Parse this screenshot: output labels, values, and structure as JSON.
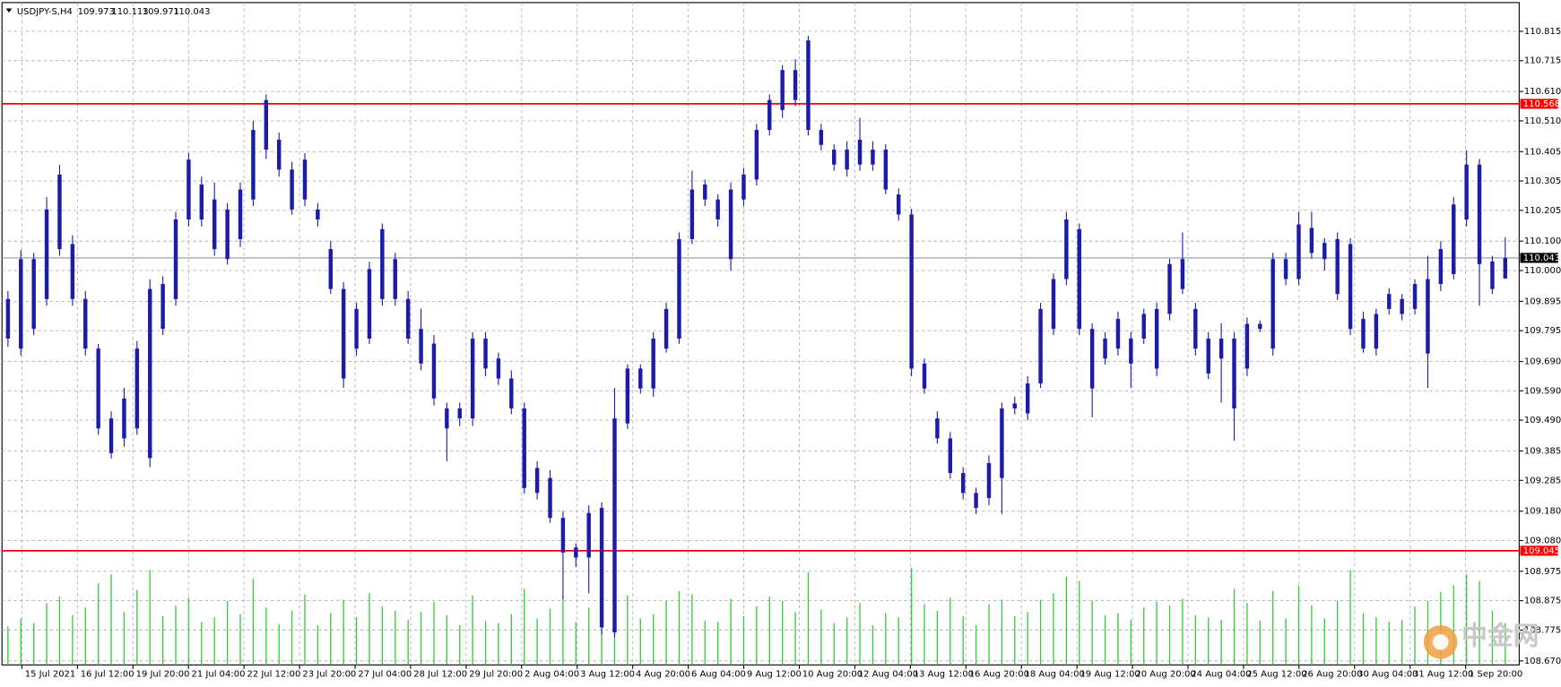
{
  "chart_data": {
    "type": "candlestick",
    "symbol": "USDJPY-S,H4",
    "watermark": "中金网",
    "color": "#1c1ca8",
    "volume_color": "#3cc83c",
    "grid": true,
    "ylim": [
      108.656,
      110.913
    ],
    "yticks": [
      110.815,
      110.715,
      {
        "value": 110.61,
        "label": "110.610"
      },
      {
        "value": 110.51,
        "label": "110.510"
      },
      110.405,
      110.305,
      110.205,
      {
        "value": 110.1,
        "label": "110.100"
      },
      {
        "value": 110,
        "label": "110.000"
      },
      109.895,
      109.795,
      {
        "value": 109.69,
        "label": "109.690"
      },
      {
        "value": 109.59,
        "label": "109.590"
      },
      {
        "value": 109.49,
        "label": "109.490"
      },
      109.385,
      109.285,
      {
        "value": 109.18,
        "label": "109.180"
      },
      {
        "value": 109.08,
        "label": "109.080"
      },
      108.975,
      108.875,
      108.775,
      {
        "value": 108.67,
        "label": "108.670"
      }
    ],
    "levels": [
      {
        "value": 110.568,
        "color": "#ff0000"
      },
      {
        "value": 109.045,
        "color": "#ff0000"
      }
    ],
    "current_price": {
      "value": 110.043,
      "color": "#8a96a8"
    },
    "x_labels": [
      "15 Jul 2021",
      "16 Jul 12:00",
      "19 Jul 20:00",
      "21 Jul 04:00",
      "22 Jul 12:00",
      "23 Jul 20:00",
      "27 Jul 04:00",
      "28 Jul 12:00",
      "29 Jul 20:00",
      "2 Aug 04:00",
      "3 Aug 12:00",
      "4 Aug 20:00",
      "6 Aug 04:00",
      "9 Aug 12:00",
      "10 Aug 20:00",
      "12 Aug 04:00",
      "13 Aug 12:00",
      "16 Aug 20:00",
      "18 Aug 04:00",
      "19 Aug 12:00",
      "20 Aug 20:00",
      "24 Aug 04:00",
      "25 Aug 12:00",
      "26 Aug 20:00",
      "30 Aug 04:00",
      "31 Aug 12:00",
      "1 Sep 20:00"
    ],
    "open": [
      109.903,
      109.734,
      110.039,
      109.903,
      110.073,
      110.09,
      109.903,
      109.734,
      109.496,
      109.428,
      109.462,
      109.361,
      109.954,
      109.903,
      110.174,
      110.293,
      110.242,
      110.208,
      110.107,
      110.242,
      110.412,
      110.446,
      110.344,
      110.242,
      110.208,
      110.073,
      109.937,
      109.734,
      109.768,
      109.903,
      110.039,
      109.903,
      109.801,
      109.751,
      109.53,
      109.53,
      109.496,
      109.768,
      109.7,
      109.632,
      109.53,
      109.242,
      109.293,
      109.157,
      109.056,
      109.022,
      109.191,
      108.767,
      109.479,
      109.666,
      109.598,
      109.734,
      109.768,
      110.107,
      110.293,
      110.242,
      110.039,
      110.242,
      110.31,
      110.479,
      110.547,
      110.683,
      110.784,
      110.479,
      110.412,
      110.344,
      110.446,
      110.361,
      110.412,
      110.259,
      110.191,
      109.683,
      109.496,
      109.428,
      109.31,
      109.242,
      109.225,
      109.293,
      109.547,
      109.513,
      109.615,
      109.801,
      109.971,
      110.141,
      109.801,
      109.7,
      109.734,
      109.768,
      109.768,
      109.869,
      109.852,
      110.039,
      109.869,
      109.649,
      109.768,
      109.768,
      109.666,
      109.818,
      109.734,
      110.039,
      109.971,
      110.145,
      110.094,
      110.107,
      110.09,
      109.835,
      109.734,
      109.869,
      109.903,
      109.869,
      109.971,
      109.954,
      109.988,
      110.174,
      110.361,
      110.031,
      109.973
    ],
    "high": [
      109.93,
      110.07,
      110.06,
      110.25,
      110.36,
      110.12,
      109.93,
      109.75,
      109.52,
      109.6,
      109.76,
      109.97,
      109.98,
      110.2,
      110.4,
      110.32,
      110.3,
      110.23,
      110.3,
      110.51,
      110.6,
      110.47,
      110.37,
      110.4,
      110.23,
      110.1,
      109.96,
      109.89,
      110.03,
      110.16,
      110.06,
      109.93,
      109.87,
      109.78,
      109.55,
      109.55,
      109.79,
      109.79,
      109.72,
      109.66,
      109.55,
      109.35,
      109.32,
      109.18,
      109.07,
      109.2,
      109.21,
      109.6,
      109.68,
      109.68,
      109.79,
      109.89,
      110.13,
      110.34,
      110.31,
      110.26,
      110.3,
      110.35,
      110.5,
      110.6,
      110.7,
      110.72,
      110.8,
      110.5,
      110.43,
      110.44,
      110.52,
      110.44,
      110.43,
      110.28,
      110.21,
      109.7,
      109.52,
      109.45,
      109.33,
      109.26,
      109.37,
      109.55,
      109.57,
      109.64,
      109.89,
      109.99,
      110.2,
      110.16,
      109.82,
      109.79,
      109.86,
      109.79,
      109.87,
      109.89,
      110.04,
      110.13,
      109.89,
      109.79,
      109.82,
      109.79,
      109.84,
      109.83,
      110.06,
      110.06,
      110.2,
      110.2,
      110.11,
      110.13,
      110.11,
      109.86,
      109.87,
      109.94,
      109.92,
      109.97,
      110.05,
      110.1,
      110.25,
      110.41,
      110.38,
      110.05,
      110.113
    ],
    "low": [
      109.74,
      109.71,
      109.78,
      109.88,
      110.05,
      109.88,
      109.71,
      109.44,
      109.36,
      109.4,
      109.44,
      109.33,
      109.78,
      109.88,
      110.15,
      110.15,
      110.05,
      110.02,
      110.08,
      110.22,
      110.38,
      110.32,
      110.19,
      110.22,
      110.15,
      109.92,
      109.6,
      109.71,
      109.75,
      109.88,
      109.88,
      109.75,
      109.66,
      109.54,
      109.35,
      109.47,
      109.47,
      109.64,
      109.61,
      109.51,
      109.24,
      109.22,
      109.14,
      108.88,
      108.99,
      108.9,
      108.76,
      108.75,
      109.46,
      109.58,
      109.57,
      109.72,
      109.75,
      110.09,
      110.22,
      110.15,
      110.0,
      110.22,
      110.29,
      110.46,
      110.52,
      110.56,
      110.46,
      110.41,
      110.34,
      110.32,
      110.34,
      110.34,
      110.26,
      110.17,
      109.64,
      109.58,
      109.41,
      109.29,
      109.22,
      109.17,
      109.2,
      109.17,
      109.51,
      109.49,
      109.6,
      109.78,
      109.95,
      109.78,
      109.5,
      109.68,
      109.71,
      109.6,
      109.75,
      109.64,
      109.83,
      109.92,
      109.71,
      109.63,
      109.55,
      109.42,
      109.64,
      109.79,
      109.71,
      109.95,
      109.95,
      110.04,
      110.0,
      109.9,
      109.78,
      109.72,
      109.71,
      109.85,
      109.83,
      109.85,
      109.6,
      109.93,
      109.97,
      110.15,
      109.88,
      109.92,
      109.971
    ],
    "close": [
      109.768,
      110.039,
      109.801,
      110.208,
      110.327,
      109.903,
      109.734,
      109.462,
      109.378,
      109.564,
      109.734,
      109.937,
      109.801,
      110.174,
      110.378,
      110.174,
      110.073,
      110.039,
      110.276,
      110.479,
      110.581,
      110.344,
      110.208,
      110.378,
      110.174,
      109.937,
      109.632,
      109.869,
      110.005,
      110.141,
      109.903,
      109.768,
      109.683,
      109.564,
      109.462,
      109.496,
      109.768,
      109.666,
      109.632,
      109.53,
      109.259,
      109.327,
      109.157,
      109.039,
      109.022,
      109.174,
      108.784,
      109.496,
      109.666,
      109.598,
      109.768,
      109.869,
      110.107,
      110.276,
      110.242,
      110.174,
      110.276,
      110.327,
      110.479,
      110.581,
      110.683,
      110.581,
      110.479,
      110.428,
      110.361,
      110.412,
      110.361,
      110.412,
      110.276,
      110.191,
      109.666,
      109.598,
      109.428,
      109.31,
      109.242,
      109.191,
      109.344,
      109.53,
      109.53,
      109.615,
      109.869,
      109.971,
      110.174,
      109.801,
      109.598,
      109.768,
      109.835,
      109.683,
      109.852,
      109.666,
      110.022,
      109.937,
      109.734,
      109.768,
      109.7,
      109.53,
      109.818,
      109.801,
      110.039,
      109.971,
      110.157,
      110.06,
      110.039,
      109.92,
      109.801,
      109.734,
      109.852,
      109.92,
      109.852,
      109.954,
      109.717,
      110.073,
      110.225,
      110.361,
      110.022,
      109.937,
      110.043
    ],
    "volume_lim": [
      0,
      60000
    ],
    "volume": [
      3500,
      4200,
      3800,
      5600,
      6200,
      4500,
      5200,
      7400,
      8200,
      4800,
      6800,
      8600,
      4400,
      5400,
      6100,
      3900,
      4300,
      5800,
      4600,
      7800,
      5200,
      3700,
      4900,
      6400,
      3600,
      4700,
      5900,
      4300,
      6500,
      5300,
      4900,
      4100,
      4800,
      5700,
      4500,
      3600,
      6300,
      4000,
      3800,
      4600,
      6900,
      4200,
      5100,
      6300,
      3900,
      5200,
      7700,
      8900,
      6300,
      4200,
      4600,
      5800,
      6700,
      6400,
      4000,
      3900,
      6000,
      4400,
      5300,
      6200,
      5800,
      4800,
      8400,
      5000,
      3800,
      4300,
      5600,
      3600,
      4700,
      4300,
      8800,
      5500,
      4900,
      6100,
      4400,
      3600,
      5500,
      5900,
      4400,
      4800,
      5900,
      6500,
      8000,
      7600,
      5800,
      4500,
      4700,
      4100,
      5200,
      5700,
      5400,
      6000,
      4500,
      4300,
      4100,
      6900,
      5600,
      4000,
      6700,
      4200,
      7200,
      5400,
      4200,
      5800,
      8600,
      4700,
      4300,
      3900,
      4100,
      5300,
      5800,
      6600,
      7200,
      8200,
      7600,
      4900,
      3800
    ]
  }
}
